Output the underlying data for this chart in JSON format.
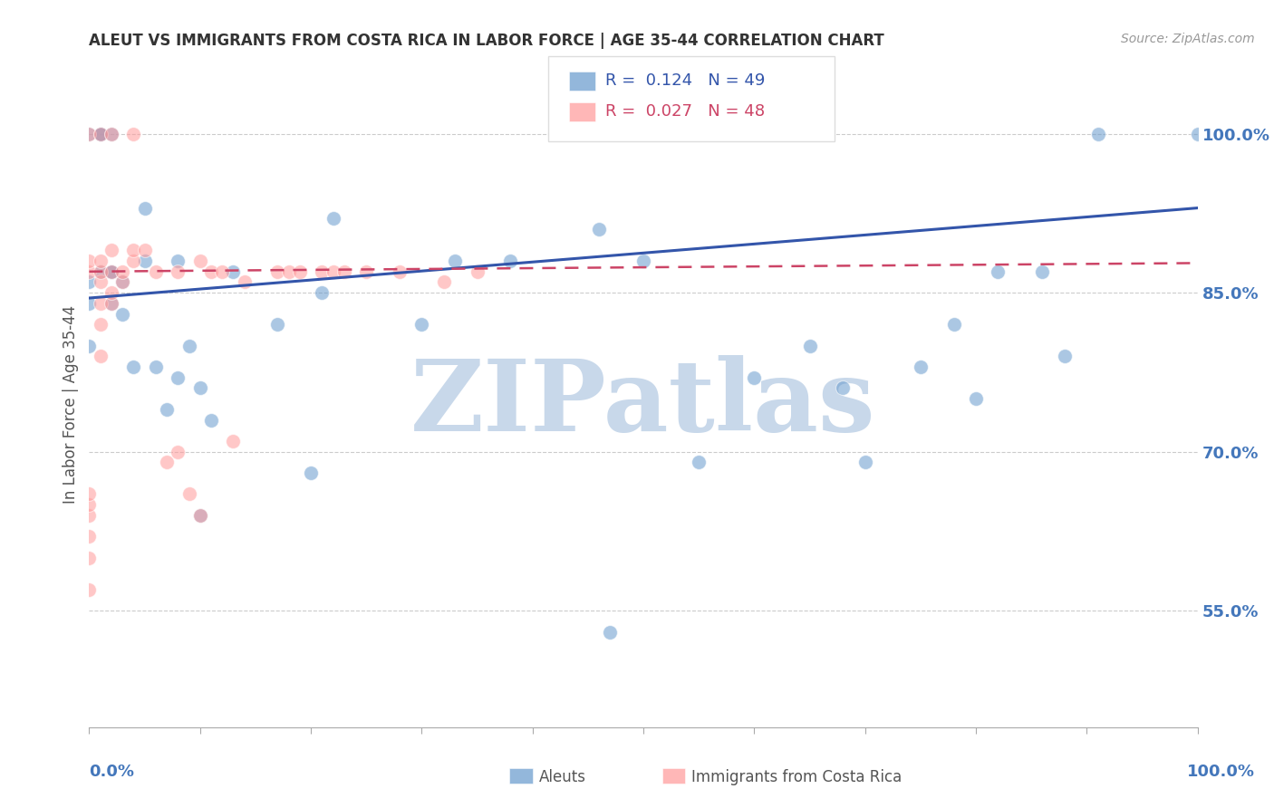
{
  "title": "ALEUT VS IMMIGRANTS FROM COSTA RICA IN LABOR FORCE | AGE 35-44 CORRELATION CHART",
  "source": "Source: ZipAtlas.com",
  "ylabel": "In Labor Force | Age 35-44",
  "yaxis_ticks": [
    0.55,
    0.7,
    0.85,
    1.0
  ],
  "yaxis_labels": [
    "55.0%",
    "70.0%",
    "85.0%",
    "100.0%"
  ],
  "xlim": [
    0.0,
    1.0
  ],
  "ylim": [
    0.44,
    1.05
  ],
  "legend_blue_r": "R =  0.124",
  "legend_blue_n": "N = 49",
  "legend_pink_r": "R =  0.027",
  "legend_pink_n": "N = 48",
  "label_blue": "Aleuts",
  "label_pink": "Immigrants from Costa Rica",
  "blue_color": "#6699CC",
  "pink_color": "#FF9999",
  "blue_points_x": [
    0.0,
    0.0,
    0.0,
    0.0,
    0.01,
    0.01,
    0.01,
    0.01,
    0.02,
    0.02,
    0.02,
    0.02,
    0.03,
    0.03,
    0.04,
    0.05,
    0.05,
    0.06,
    0.07,
    0.08,
    0.08,
    0.09,
    0.1,
    0.1,
    0.11,
    0.13,
    0.17,
    0.2,
    0.21,
    0.22,
    0.3,
    0.33,
    0.38,
    0.46,
    0.47,
    0.5,
    0.55,
    0.6,
    0.65,
    0.68,
    0.7,
    0.75,
    0.78,
    0.8,
    0.82,
    0.86,
    0.88,
    0.91,
    1.0
  ],
  "blue_points_y": [
    0.8,
    0.84,
    0.86,
    1.0,
    1.0,
    1.0,
    1.0,
    0.87,
    0.84,
    0.87,
    0.87,
    1.0,
    0.83,
    0.86,
    0.78,
    0.88,
    0.93,
    0.78,
    0.74,
    0.77,
    0.88,
    0.8,
    0.76,
    0.64,
    0.73,
    0.87,
    0.82,
    0.68,
    0.85,
    0.92,
    0.82,
    0.88,
    0.88,
    0.91,
    0.53,
    0.88,
    0.69,
    0.77,
    0.8,
    0.76,
    0.69,
    0.78,
    0.82,
    0.75,
    0.87,
    0.87,
    0.79,
    1.0,
    1.0
  ],
  "pink_points_x": [
    0.0,
    0.0,
    0.0,
    0.0,
    0.0,
    0.0,
    0.0,
    0.0,
    0.0,
    0.01,
    0.01,
    0.01,
    0.01,
    0.01,
    0.01,
    0.01,
    0.02,
    0.02,
    0.02,
    0.02,
    0.02,
    0.03,
    0.03,
    0.04,
    0.04,
    0.04,
    0.05,
    0.06,
    0.07,
    0.08,
    0.08,
    0.09,
    0.1,
    0.1,
    0.11,
    0.12,
    0.13,
    0.14,
    0.17,
    0.18,
    0.19,
    0.21,
    0.22,
    0.23,
    0.25,
    0.28,
    0.32,
    0.35
  ],
  "pink_points_y": [
    0.57,
    0.6,
    0.62,
    0.64,
    0.65,
    0.66,
    0.87,
    0.88,
    1.0,
    0.79,
    0.82,
    0.84,
    0.86,
    0.87,
    0.88,
    1.0,
    0.84,
    0.85,
    0.87,
    0.89,
    1.0,
    0.86,
    0.87,
    0.88,
    0.89,
    1.0,
    0.89,
    0.87,
    0.69,
    0.7,
    0.87,
    0.66,
    0.64,
    0.88,
    0.87,
    0.87,
    0.71,
    0.86,
    0.87,
    0.87,
    0.87,
    0.87,
    0.87,
    0.87,
    0.87,
    0.87,
    0.86,
    0.87
  ],
  "blue_trend_x": [
    0.0,
    1.0
  ],
  "blue_trend_y_start": 0.845,
  "blue_trend_y_end": 0.93,
  "pink_trend_x": [
    0.0,
    1.0
  ],
  "pink_trend_y_start": 0.87,
  "pink_trend_y_end": 0.878,
  "watermark": "ZIPatlas",
  "watermark_color": "#C8D8EA",
  "background_color": "#FFFFFF",
  "grid_color": "#CCCCCC",
  "title_color": "#333333",
  "tick_label_color": "#4477BB",
  "ylabel_color": "#555555"
}
